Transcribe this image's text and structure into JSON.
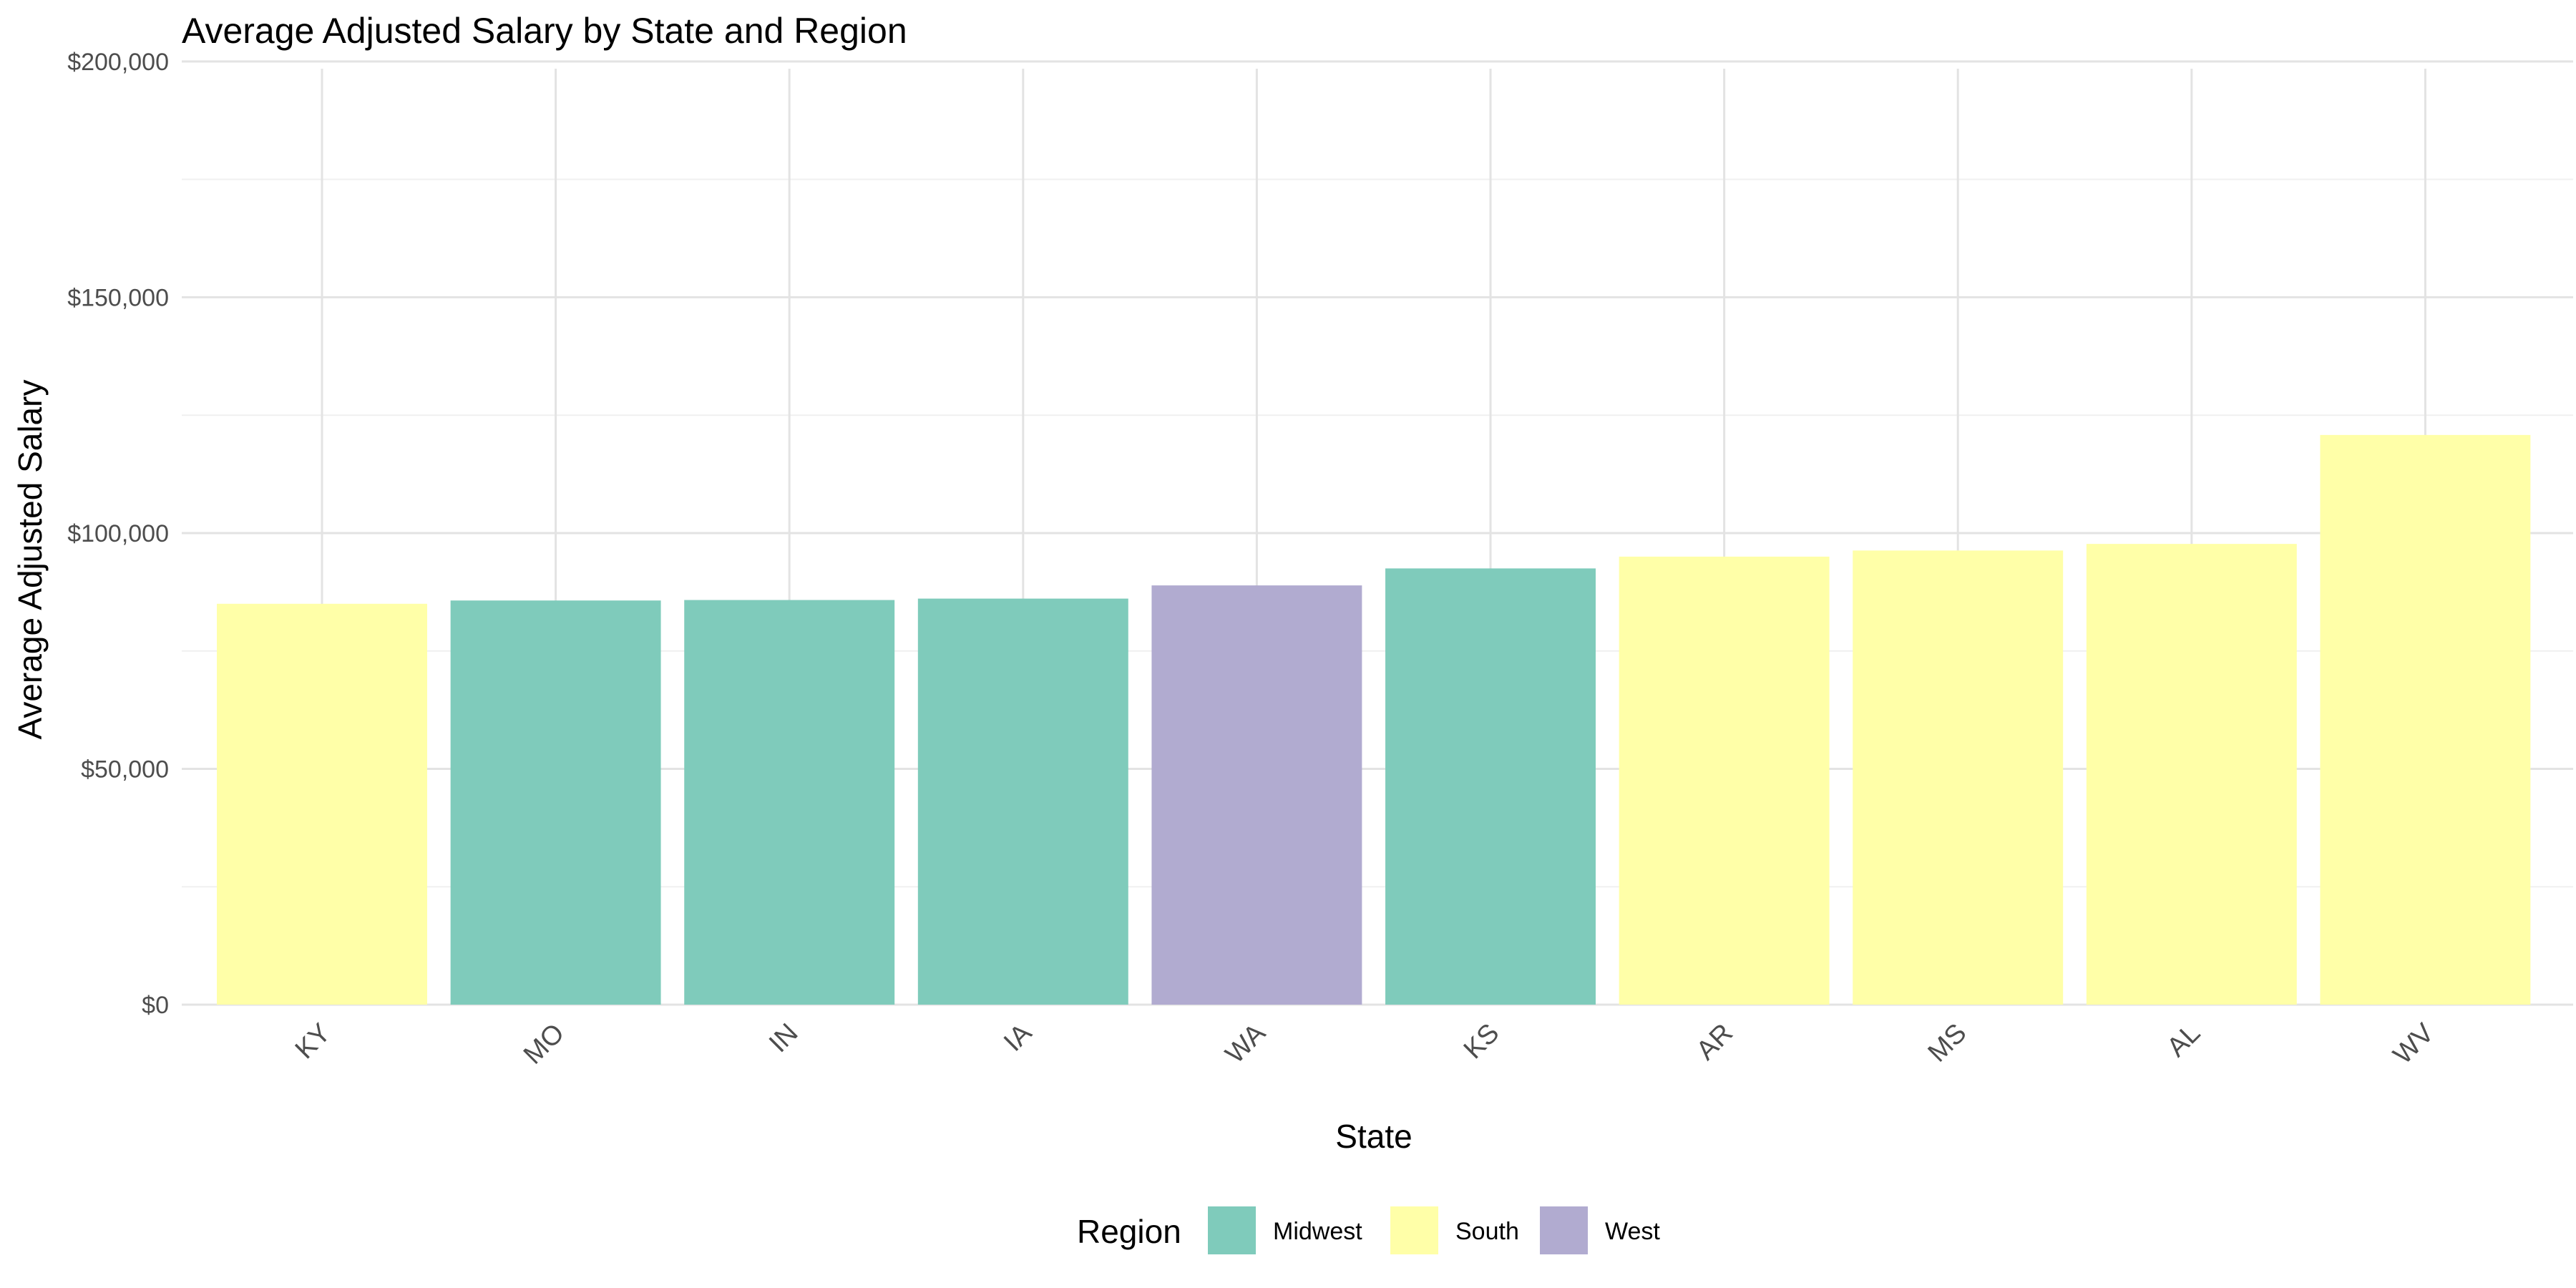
{
  "chart_data": {
    "type": "bar",
    "title": "Average Adjusted Salary by State and Region",
    "xlabel": "State",
    "ylabel": "Average Adjusted Salary",
    "ylim": [
      0,
      210000
    ],
    "y_ticks": [
      0,
      50000,
      100000,
      150000,
      200000
    ],
    "y_tick_labels": [
      "$0",
      "$50,000",
      "$100,000",
      "$150,000",
      "$200,000"
    ],
    "grid": true,
    "legend_position": "bottom",
    "legend_title": "Region",
    "legend": [
      {
        "name": "Midwest",
        "color": "#7fcbbb"
      },
      {
        "name": "South",
        "color": "#ffffa8"
      },
      {
        "name": "West",
        "color": "#b1abd0"
      }
    ],
    "categories": [
      "KY",
      "MO",
      "IN",
      "IA",
      "WA",
      "KS",
      "AR",
      "MS",
      "AL",
      "WV"
    ],
    "values": [
      85000,
      85700,
      85800,
      86100,
      88900,
      92500,
      95000,
      96300,
      97700,
      120800
    ],
    "regions": [
      "South",
      "Midwest",
      "Midwest",
      "Midwest",
      "West",
      "Midwest",
      "South",
      "South",
      "South",
      "South"
    ]
  }
}
